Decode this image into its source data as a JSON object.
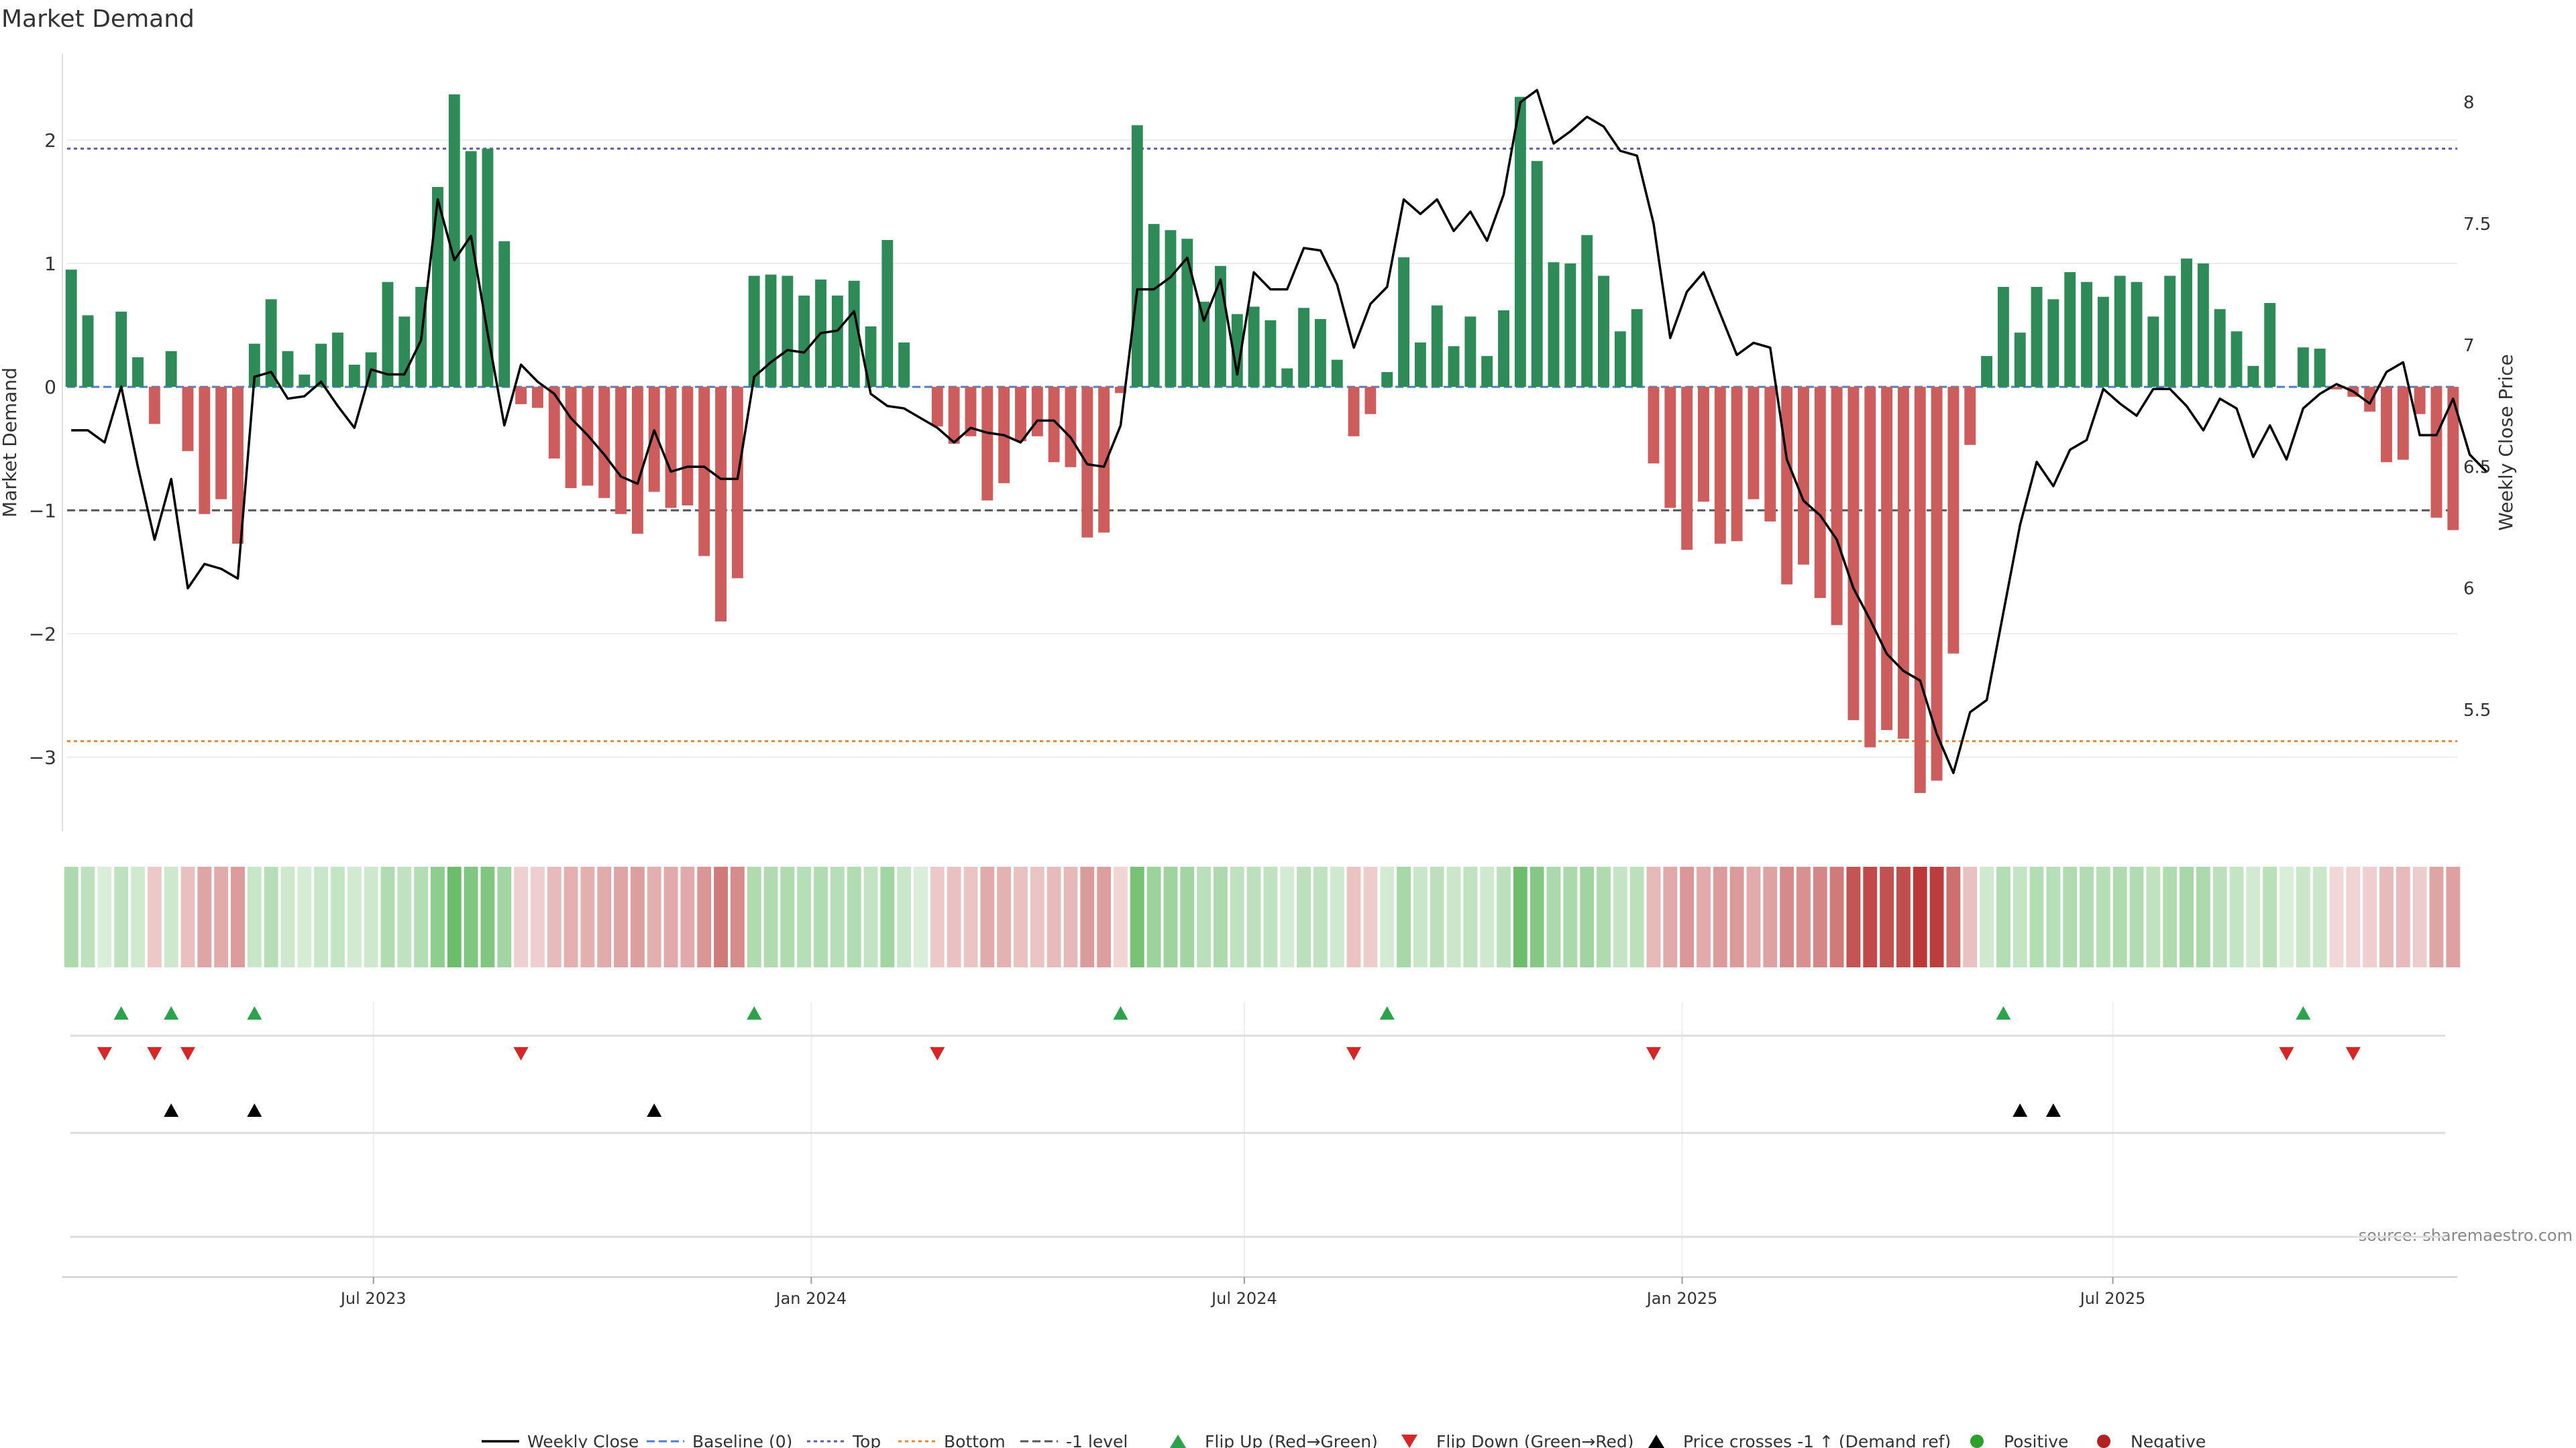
{
  "chart_data": {
    "type": "bar",
    "title": "Market Demand",
    "source": "source: sharemaestro.com",
    "y_left": {
      "label": "Market Demand",
      "ylim": [
        -3.6,
        2.7
      ],
      "ticks": [
        -3,
        -2,
        -1,
        0,
        1,
        2
      ],
      "tick_labels": [
        "−3",
        "−2",
        "−1",
        "0",
        "1",
        "2"
      ]
    },
    "y_right": {
      "label": "Weekly Close Price",
      "ylim": [
        5.0,
        8.2
      ],
      "ticks": [
        5.5,
        6,
        6.5,
        7,
        7.5,
        8
      ],
      "tick_labels": [
        "5.5",
        "6",
        "6.5",
        "7",
        "7.5",
        "8"
      ]
    },
    "x_axis": {
      "start": "2023-02-24",
      "end": "2025-10-24",
      "step_days": 7,
      "ticks": [
        {
          "date": "2023-07-01",
          "label": "Jul 2023"
        },
        {
          "date": "2024-01-01",
          "label": "Jan 2024"
        },
        {
          "date": "2024-07-01",
          "label": "Jul 2024"
        },
        {
          "date": "2025-01-01",
          "label": "Jan 2025"
        },
        {
          "date": "2025-07-01",
          "label": "Jul 2025"
        }
      ]
    },
    "reference_lines": [
      {
        "name": "Baseline (0)",
        "y": 0,
        "color": "#4c7fc4",
        "style": "dashed"
      },
      {
        "name": "Top",
        "y": 1.93,
        "color": "#5e5aa8",
        "style": "dotted"
      },
      {
        "name": "Bottom",
        "y": -2.87,
        "color": "#e08a3c",
        "style": "dotted"
      },
      {
        "name": "-1 level",
        "y": -1,
        "color": "#555555",
        "style": "dashed"
      }
    ],
    "demand": [
      0.95,
      0.58,
      0,
      0.61,
      0.24,
      -0.3,
      0.29,
      -0.52,
      -1.03,
      -0.91,
      -1.27,
      0.35,
      0.71,
      0.29,
      0.1,
      0.35,
      0.44,
      0.18,
      0.28,
      0.85,
      0.57,
      0.81,
      1.62,
      2.37,
      1.91,
      1.93,
      1.18,
      -0.14,
      -0.17,
      -0.58,
      -0.82,
      -0.8,
      -0.9,
      -1.03,
      -1.19,
      -0.85,
      -0.98,
      -0.96,
      -1.37,
      -1.9,
      -1.55,
      0.9,
      0.91,
      0.9,
      0.74,
      0.87,
      0.74,
      0.86,
      0.49,
      1.19,
      0.36,
      0,
      -0.32,
      -0.46,
      -0.4,
      -0.92,
      -0.78,
      -0.44,
      -0.4,
      -0.61,
      -0.65,
      -1.22,
      -1.18,
      -0.05,
      2.12,
      1.32,
      1.27,
      1.2,
      0.69,
      0.98,
      0.59,
      0.65,
      0.54,
      0.15,
      0.64,
      0.55,
      0.22,
      -0.4,
      -0.22,
      0.12,
      1.05,
      0.36,
      0.66,
      0.33,
      0.57,
      0.25,
      0.62,
      2.35,
      1.83,
      1.01,
      1.0,
      1.23,
      0.9,
      0.45,
      0.63,
      -0.62,
      -0.98,
      -1.32,
      -0.93,
      -1.27,
      -1.25,
      -0.91,
      -1.09,
      -1.6,
      -1.44,
      -1.71,
      -1.93,
      -2.7,
      -2.92,
      -2.78,
      -2.85,
      -3.29,
      -3.19,
      -2.16,
      -0.47,
      0.25,
      0.81,
      0.44,
      0.81,
      0.71,
      0.93,
      0.85,
      0.73,
      0.9,
      0.85,
      0.57,
      0.9,
      1.04,
      1.0,
      0.63,
      0.45,
      0.17,
      0.68,
      0,
      0.32,
      0.31,
      -0.02,
      -0.08,
      -0.2,
      -0.61,
      -0.59,
      -0.22,
      -1.06,
      -1.16
    ],
    "weekly_close": [
      6.65,
      6.65,
      6.6,
      6.83,
      6.5,
      6.2,
      6.45,
      6.0,
      6.1,
      6.08,
      6.04,
      6.87,
      6.89,
      6.78,
      6.79,
      6.85,
      6.75,
      6.66,
      6.9,
      6.88,
      6.88,
      7.02,
      7.6,
      7.35,
      7.45,
      7.05,
      6.67,
      6.92,
      6.85,
      6.8,
      6.7,
      6.63,
      6.55,
      6.46,
      6.43,
      6.65,
      6.48,
      6.5,
      6.5,
      6.45,
      6.45,
      6.87,
      6.93,
      6.98,
      6.97,
      7.05,
      7.06,
      7.14,
      6.8,
      6.75,
      6.74,
      6.7,
      6.66,
      6.6,
      6.66,
      6.64,
      6.63,
      6.6,
      6.69,
      6.69,
      6.62,
      6.51,
      6.5,
      6.67,
      7.23,
      7.23,
      7.28,
      7.36,
      7.1,
      7.27,
      6.88,
      7.3,
      7.23,
      7.23,
      7.4,
      7.39,
      7.25,
      6.99,
      7.17,
      7.24,
      7.6,
      7.54,
      7.6,
      7.47,
      7.55,
      7.43,
      7.62,
      8.0,
      8.05,
      7.83,
      7.88,
      7.94,
      7.9,
      7.8,
      7.78,
      7.5,
      7.03,
      7.22,
      7.3,
      7.13,
      6.96,
      7.01,
      6.99,
      6.53,
      6.36,
      6.3,
      6.2,
      6.0,
      5.87,
      5.73,
      5.66,
      5.62,
      5.4,
      5.24,
      5.49,
      5.54,
      5.9,
      6.26,
      6.52,
      6.42,
      6.57,
      6.61,
      6.82,
      6.76,
      6.71,
      6.82,
      6.82,
      6.75,
      6.65,
      6.78,
      6.74,
      6.54,
      6.67,
      6.53,
      6.74,
      6.8,
      6.84,
      6.81,
      6.76,
      6.89,
      6.93,
      6.63,
      6.63,
      6.78,
      6.55,
      6.48
    ],
    "flip_up_weeks": [
      3,
      6,
      11,
      41,
      63,
      79,
      116,
      134
    ],
    "flip_down_weeks": [
      2,
      5,
      7,
      27,
      52,
      77,
      95,
      133,
      137
    ],
    "price_crosses_weeks": [
      6,
      11,
      35,
      117,
      119
    ],
    "legend": [
      {
        "label": "Weekly Close",
        "symbol": "line",
        "color": "#000000"
      },
      {
        "label": "Baseline (0)",
        "symbol": "dash",
        "color": "#4c7fc4"
      },
      {
        "label": "Top",
        "symbol": "dot",
        "color": "#5e5aa8"
      },
      {
        "label": "Bottom",
        "symbol": "dot",
        "color": "#e08a3c"
      },
      {
        "label": "-1 level",
        "symbol": "dash",
        "color": "#555555"
      },
      {
        "label": "Flip Up (Red→Green)",
        "symbol": "tri-up",
        "color": "#2ca24d"
      },
      {
        "label": "Flip Down (Green→Red)",
        "symbol": "tri-down",
        "color": "#d62728"
      },
      {
        "label": "Price crosses -1 ↑ (Demand ref)",
        "symbol": "tri-up",
        "color": "#000000"
      },
      {
        "label": "Positive",
        "symbol": "circle",
        "color": "#2ca02c"
      },
      {
        "label": "Negative",
        "symbol": "circle",
        "color": "#b22222"
      }
    ],
    "colors": {
      "positive_bar": "#2e8b57",
      "negative_bar": "#cd5c5c",
      "heat_positive": "#2ca02c",
      "heat_negative": "#b22222",
      "price_line": "#000000"
    },
    "grid": true
  }
}
